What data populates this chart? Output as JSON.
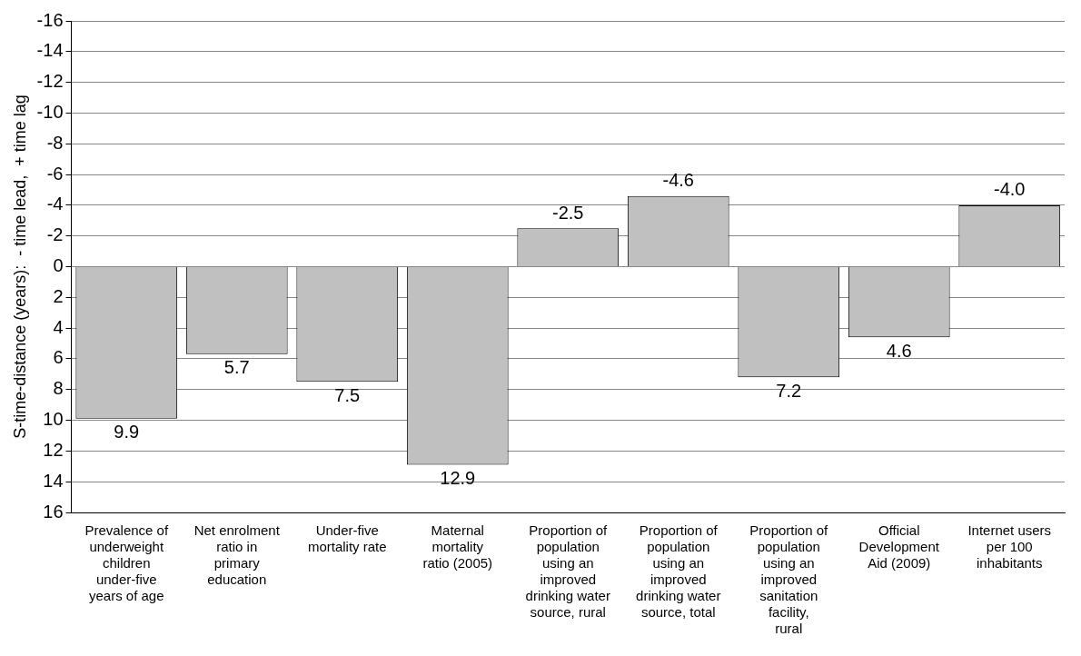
{
  "chart_data": {
    "type": "bar",
    "ylabel": "S-time-distance (years):  - time lead,  + time lag",
    "categories": [
      "Prevalence of underweight children under-five years of age",
      "Net enrolment ratio in primary education",
      "Under-five mortality rate",
      "Maternal mortality ratio (2005)",
      "Proportion of population using an improved drinking water source, rural",
      "Proportion of population using an improved drinking water source, total",
      "Proportion of population using an improved sanitation facility, rural",
      "Official Development Aid (2009)",
      "Internet users per 100 inhabitants"
    ],
    "values": [
      9.9,
      5.7,
      7.5,
      12.9,
      -2.5,
      -4.6,
      7.2,
      4.6,
      -4.0
    ],
    "value_labels": [
      "9.9",
      "5.7",
      "7.5",
      "12.9",
      "-2.5",
      "-4.6",
      "7.2",
      "4.6",
      "-4.0"
    ],
    "color": "#c0c0c0",
    "ylim": [
      16,
      -16
    ],
    "yticks": [
      -16,
      -14,
      -12,
      -10,
      -8,
      -6,
      -4,
      -2,
      0,
      2,
      4,
      6,
      8,
      10,
      12,
      14,
      16
    ],
    "grid": "y",
    "legend": false
  }
}
